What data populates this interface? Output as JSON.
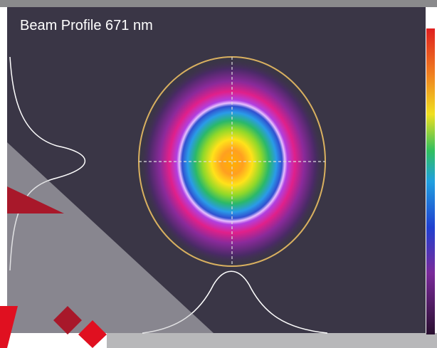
{
  "title": "Beam Profile 671 nm"
}
